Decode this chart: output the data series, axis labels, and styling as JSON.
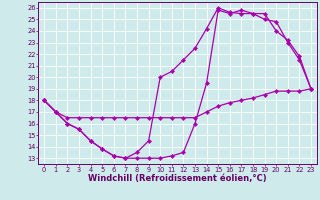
{
  "xlabel": "Windchill (Refroidissement éolien,°C)",
  "xlim": [
    -0.5,
    23.5
  ],
  "ylim": [
    12.5,
    26.5
  ],
  "xticks": [
    0,
    1,
    2,
    3,
    4,
    5,
    6,
    7,
    8,
    9,
    10,
    11,
    12,
    13,
    14,
    15,
    16,
    17,
    18,
    19,
    20,
    21,
    22,
    23
  ],
  "yticks": [
    13,
    14,
    15,
    16,
    17,
    18,
    19,
    20,
    21,
    22,
    23,
    24,
    25,
    26
  ],
  "background_color": "#ceeaea",
  "grid_color": "#b8d8d8",
  "line_color": "#aa00aa",
  "curve1_x": [
    0,
    1,
    2,
    3,
    4,
    5,
    6,
    7,
    8,
    9,
    10,
    11,
    12,
    13,
    14,
    15,
    16,
    17,
    18,
    19,
    20,
    21,
    22,
    23
  ],
  "curve1_y": [
    18,
    17,
    16.5,
    16.5,
    16.5,
    16.5,
    16.5,
    16.5,
    16.5,
    16.5,
    16.5,
    16.5,
    16.5,
    16.5,
    17.0,
    17.5,
    17.8,
    18.0,
    18.2,
    18.5,
    18.8,
    18.8,
    18.8,
    19.0
  ],
  "curve2_x": [
    0,
    1,
    2,
    3,
    4,
    5,
    6,
    7,
    8,
    9,
    10,
    11,
    12,
    13,
    14,
    15,
    16,
    17,
    18,
    19,
    20,
    21,
    22,
    23
  ],
  "curve2_y": [
    18,
    17,
    16,
    15.5,
    14.5,
    13.8,
    13.2,
    13.0,
    13.0,
    13.0,
    13.0,
    13.2,
    13.5,
    16.0,
    19.5,
    25.8,
    25.5,
    25.8,
    25.5,
    25.0,
    24.8,
    23.0,
    21.5,
    19.0
  ],
  "curve3_x": [
    0,
    1,
    2,
    3,
    4,
    5,
    6,
    7,
    8,
    9,
    10,
    11,
    12,
    13,
    14,
    15,
    16,
    17,
    18,
    19,
    20,
    21,
    22,
    23
  ],
  "curve3_y": [
    18,
    17,
    16,
    15.5,
    14.5,
    13.8,
    13.2,
    13.0,
    13.5,
    14.5,
    20.0,
    20.5,
    21.5,
    22.5,
    24.2,
    26.0,
    25.6,
    25.5,
    25.5,
    25.5,
    24.0,
    23.2,
    21.8,
    19.0
  ],
  "marker": "D",
  "markersize": 2.2,
  "linewidth": 0.9,
  "tick_fontsize": 4.8,
  "xlabel_fontsize": 6.0,
  "tick_color": "#660066",
  "spine_color": "#660066"
}
